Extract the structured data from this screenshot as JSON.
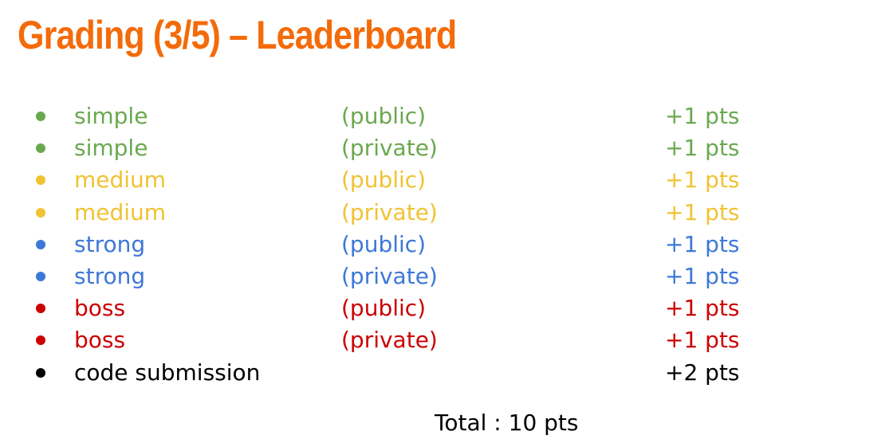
{
  "title": "Grading (3/5) – Leaderboard",
  "colors": {
    "simple": "#6aa84f",
    "medium": "#f1c232",
    "strong": "#3c78d8",
    "boss": "#cc0000",
    "code": "#000000"
  },
  "items": [
    {
      "name": "simple",
      "visibility": "(public)",
      "points": "+1 pts",
      "color": "#6aa84f"
    },
    {
      "name": "simple",
      "visibility": "(private)",
      "points": "+1 pts",
      "color": "#6aa84f"
    },
    {
      "name": "medium",
      "visibility": "(public)",
      "points": "+1 pts",
      "color": "#f1c232"
    },
    {
      "name": "medium",
      "visibility": "(private)",
      "points": "+1 pts",
      "color": "#f1c232"
    },
    {
      "name": "strong",
      "visibility": "(public)",
      "points": "+1 pts",
      "color": "#3c78d8"
    },
    {
      "name": "strong",
      "visibility": "(private)",
      "points": "+1 pts",
      "color": "#3c78d8"
    },
    {
      "name": "boss",
      "visibility": "(public)",
      "points": "+1 pts",
      "color": "#cc0000"
    },
    {
      "name": "boss",
      "visibility": "(private)",
      "points": "+1 pts",
      "color": "#cc0000"
    },
    {
      "name": "code submission",
      "visibility": "",
      "points": "+2 pts",
      "color": "#000000"
    }
  ],
  "total": "Total : 10 pts"
}
